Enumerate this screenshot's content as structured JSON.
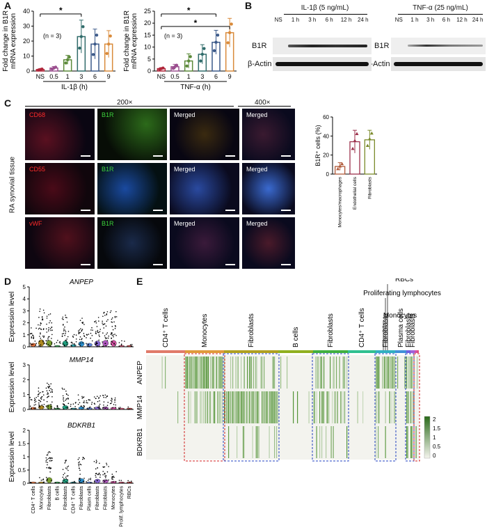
{
  "panels": {
    "A": "A",
    "B": "B",
    "C": "C",
    "D": "D",
    "E": "E"
  },
  "panelA": {
    "ylabel": "Fold change in B1R mRNA expression",
    "n_note": "(n = 3)",
    "significance": "*",
    "chart_data": [
      {
        "type": "bar",
        "xlabel": "IL-1β (h)",
        "ylabel": "Fold change in B1R mRNA expression",
        "categories": [
          "NS",
          "0.5",
          "1",
          "3",
          "6",
          "9"
        ],
        "values": [
          1,
          2,
          7.5,
          23,
          18,
          18
        ],
        "errors": [
          0.5,
          1,
          3,
          11,
          10,
          9
        ],
        "colors": [
          "#b0263a",
          "#9b4f8f",
          "#5c8a3a",
          "#2f6b6a",
          "#3c5a8a",
          "#d98a3a"
        ],
        "ylim": [
          0,
          40
        ],
        "yticks": [
          0,
          10,
          20,
          30,
          40
        ],
        "significance": [
          {
            "from": "NS",
            "to": "3",
            "label": "*"
          }
        ]
      },
      {
        "type": "bar",
        "xlabel": "TNF-α (h)",
        "ylabel": "Fold change in B1R mRNA expression",
        "categories": [
          "NS",
          "0.5",
          "1",
          "3",
          "6",
          "9"
        ],
        "values": [
          1,
          1.8,
          4.2,
          7,
          12,
          16
        ],
        "errors": [
          0.4,
          1,
          3,
          4,
          5,
          6
        ],
        "colors": [
          "#b0263a",
          "#9b4f8f",
          "#5c8a3a",
          "#2f6b6a",
          "#3c5a8a",
          "#d98a3a"
        ],
        "ylim": [
          0,
          25
        ],
        "yticks": [
          0,
          5,
          10,
          15,
          20,
          25
        ],
        "significance": [
          {
            "from": "NS",
            "to": "6",
            "label": "*"
          },
          {
            "from": "NS",
            "to": "9",
            "label": "*"
          }
        ]
      }
    ]
  },
  "panelB": {
    "il1b_title": "IL-1β (5 ng/mL)",
    "tnfa_title": "TNF-α (25 ng/mL)",
    "lanes": [
      "NS",
      "1 h",
      "3 h",
      "6 h",
      "12 h",
      "24 h"
    ],
    "row1": "B1R",
    "row2": "β-Actin"
  },
  "panelC": {
    "mag1": "200×",
    "mag2": "400×",
    "side_label": "RA synovial tissue",
    "rows": [
      {
        "marker": "CD68",
        "marker_color": "#ff2a2a",
        "b1r": "B1R",
        "merged": "Merged"
      },
      {
        "marker": "CD55",
        "marker_color": "#ff2a2a",
        "b1r": "B1R",
        "merged": "Merged"
      },
      {
        "marker": "vWF",
        "marker_color": "#ff2a2a",
        "b1r": "B1R",
        "merged": "Merged"
      }
    ],
    "b1r_color": "#3cd23c",
    "chart_data": {
      "type": "bar",
      "ylabel": "B1R⁺ cells (%)",
      "categories": [
        "Monocytes/macrophages",
        "Endothelial cells",
        "Fibroblasts"
      ],
      "values": [
        8,
        34,
        36
      ],
      "errors": [
        4,
        12,
        10
      ],
      "colors": [
        "#b05a3a",
        "#9b2f4a",
        "#7a8a2a"
      ],
      "ylim": [
        0,
        60
      ],
      "yticks": [
        0,
        20,
        40,
        60
      ]
    }
  },
  "panelD": {
    "ylabel": "Expression level",
    "genes": [
      "ANPEP",
      "MMP14",
      "BDKRB1"
    ],
    "clusters": [
      "CD4⁺ T cells",
      "Monocytes",
      "Fibroblasts",
      "B cells",
      "Fibroblasts",
      "CD4⁺ T cells",
      "Fibroblasts",
      "Plasm cells",
      "Fibroblasts",
      "Fibroblasts",
      "Monocytes",
      "Prolif. lymphocytes",
      "RBCs"
    ],
    "chart_data": [
      {
        "type": "scatter",
        "title": "ANPEP",
        "ylim": [
          0,
          5
        ],
        "yticks": [
          0,
          1,
          2,
          3,
          4,
          5
        ]
      },
      {
        "type": "scatter",
        "title": "MMP14",
        "ylim": [
          0,
          3
        ],
        "yticks": [
          0,
          1,
          2,
          3
        ]
      },
      {
        "type": "scatter",
        "title": "BDKRB1",
        "ylim": [
          0,
          2.0
        ],
        "yticks": [
          0,
          0.5,
          1.0,
          1.5,
          2.0
        ]
      }
    ]
  },
  "panelE": {
    "genes": [
      "ANPEP",
      "MMP14",
      "BDKRB1"
    ],
    "top_labels": [
      "CD4⁺ T cells",
      "Monocytes",
      "Fibroblasts",
      "B cells",
      "Fibroblasts",
      "CD4⁺ T cells",
      "Fibroblasts",
      "Plasma cells",
      "Fibroblasts",
      "Fibroblasts"
    ],
    "upper_labels": [
      "Monocytes",
      "Proliferating lymphocytes",
      "RBCs"
    ],
    "legend_ticks": [
      "2",
      "1.5",
      "1",
      "0.5",
      "0"
    ],
    "chart_data": {
      "type": "heatmap",
      "rows": [
        "ANPEP",
        "MMP14",
        "BDKRB1"
      ],
      "scale": [
        0,
        2
      ]
    }
  }
}
